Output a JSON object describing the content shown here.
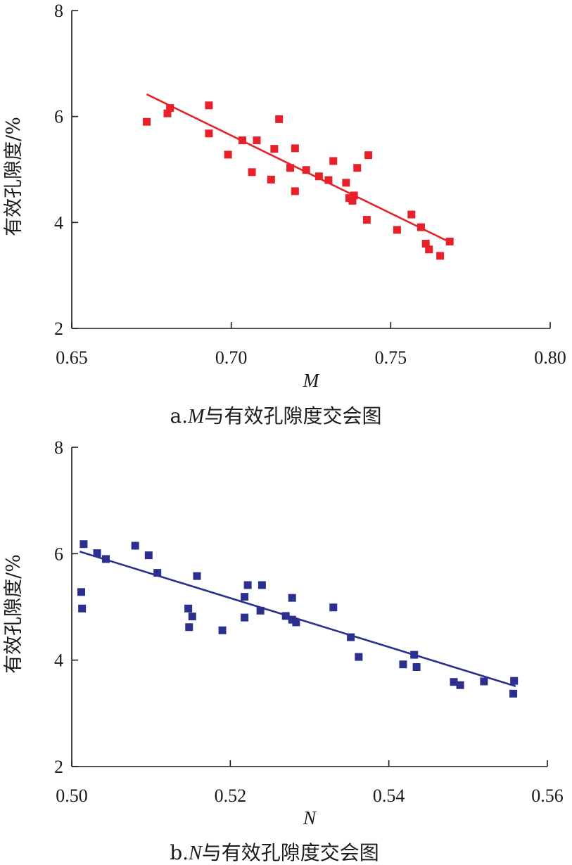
{
  "chart_data": [
    {
      "type": "scatter",
      "xlabel": "M",
      "ylabel": "有效孔隙度/%",
      "caption_prefix": "a.",
      "caption_var": "M",
      "caption_suffix": "与有效孔隙度交会图",
      "xlim": [
        0.65,
        0.8
      ],
      "ylim": [
        2,
        8
      ],
      "xticks": [
        "0.65",
        "0.70",
        "0.75",
        "0.80"
      ],
      "yticks": [
        "2",
        "4",
        "6",
        "8"
      ],
      "grid": false,
      "color": "#e8202a",
      "trendline": {
        "x": [
          0.6735,
          0.7685
        ],
        "y": [
          6.42,
          3.63
        ]
      },
      "points": [
        {
          "x": 0.6735,
          "y": 5.9
        },
        {
          "x": 0.68,
          "y": 6.06
        },
        {
          "x": 0.6808,
          "y": 6.16
        },
        {
          "x": 0.693,
          "y": 6.21
        },
        {
          "x": 0.693,
          "y": 5.68
        },
        {
          "x": 0.699,
          "y": 5.28
        },
        {
          "x": 0.7035,
          "y": 5.55
        },
        {
          "x": 0.7065,
          "y": 4.95
        },
        {
          "x": 0.708,
          "y": 5.55
        },
        {
          "x": 0.7125,
          "y": 4.81
        },
        {
          "x": 0.7135,
          "y": 5.39
        },
        {
          "x": 0.715,
          "y": 5.95
        },
        {
          "x": 0.7185,
          "y": 5.03
        },
        {
          "x": 0.72,
          "y": 5.4
        },
        {
          "x": 0.72,
          "y": 4.59
        },
        {
          "x": 0.7235,
          "y": 4.99
        },
        {
          "x": 0.7275,
          "y": 4.87
        },
        {
          "x": 0.7305,
          "y": 4.8
        },
        {
          "x": 0.732,
          "y": 5.16
        },
        {
          "x": 0.736,
          "y": 4.75
        },
        {
          "x": 0.737,
          "y": 4.46
        },
        {
          "x": 0.738,
          "y": 4.41
        },
        {
          "x": 0.7385,
          "y": 4.51
        },
        {
          "x": 0.7395,
          "y": 5.03
        },
        {
          "x": 0.7425,
          "y": 4.05
        },
        {
          "x": 0.743,
          "y": 5.27
        },
        {
          "x": 0.752,
          "y": 3.86
        },
        {
          "x": 0.7565,
          "y": 4.15
        },
        {
          "x": 0.7595,
          "y": 3.91
        },
        {
          "x": 0.761,
          "y": 3.6
        },
        {
          "x": 0.762,
          "y": 3.49
        },
        {
          "x": 0.7655,
          "y": 3.37
        },
        {
          "x": 0.7685,
          "y": 3.64
        }
      ]
    },
    {
      "type": "scatter",
      "xlabel": "N",
      "ylabel": "有效孔隙度/%",
      "caption_prefix": "b.",
      "caption_var": "N",
      "caption_suffix": "与有效孔隙度交会图",
      "xlim": [
        0.5,
        0.56
      ],
      "ylim": [
        2,
        8
      ],
      "xticks": [
        "0.50",
        "0.52",
        "0.54",
        "0.56"
      ],
      "yticks": [
        "2",
        "4",
        "6",
        "8"
      ],
      "grid": false,
      "color": "#2b2f8e",
      "trendline": {
        "x": [
          0.501,
          0.556
        ],
        "y": [
          6.04,
          3.51
        ]
      },
      "points": [
        {
          "x": 0.5012,
          "y": 5.28
        },
        {
          "x": 0.5013,
          "y": 4.97
        },
        {
          "x": 0.5015,
          "y": 6.18
        },
        {
          "x": 0.5032,
          "y": 6.01
        },
        {
          "x": 0.5043,
          "y": 5.9
        },
        {
          "x": 0.508,
          "y": 6.15
        },
        {
          "x": 0.5097,
          "y": 5.97
        },
        {
          "x": 0.5108,
          "y": 5.64
        },
        {
          "x": 0.5147,
          "y": 4.97
        },
        {
          "x": 0.5148,
          "y": 4.62
        },
        {
          "x": 0.5152,
          "y": 4.82
        },
        {
          "x": 0.5158,
          "y": 5.58
        },
        {
          "x": 0.519,
          "y": 4.56
        },
        {
          "x": 0.5218,
          "y": 5.19
        },
        {
          "x": 0.5218,
          "y": 4.8
        },
        {
          "x": 0.5222,
          "y": 5.41
        },
        {
          "x": 0.5238,
          "y": 4.93
        },
        {
          "x": 0.524,
          "y": 5.41
        },
        {
          "x": 0.527,
          "y": 4.83
        },
        {
          "x": 0.5278,
          "y": 5.17
        },
        {
          "x": 0.5278,
          "y": 4.76
        },
        {
          "x": 0.5283,
          "y": 4.71
        },
        {
          "x": 0.533,
          "y": 4.99
        },
        {
          "x": 0.5352,
          "y": 4.43
        },
        {
          "x": 0.5362,
          "y": 4.06
        },
        {
          "x": 0.5418,
          "y": 3.92
        },
        {
          "x": 0.5432,
          "y": 4.1
        },
        {
          "x": 0.5435,
          "y": 3.87
        },
        {
          "x": 0.5482,
          "y": 3.59
        },
        {
          "x": 0.549,
          "y": 3.53
        },
        {
          "x": 0.552,
          "y": 3.6
        },
        {
          "x": 0.5557,
          "y": 3.37
        },
        {
          "x": 0.5558,
          "y": 3.61
        }
      ]
    }
  ]
}
